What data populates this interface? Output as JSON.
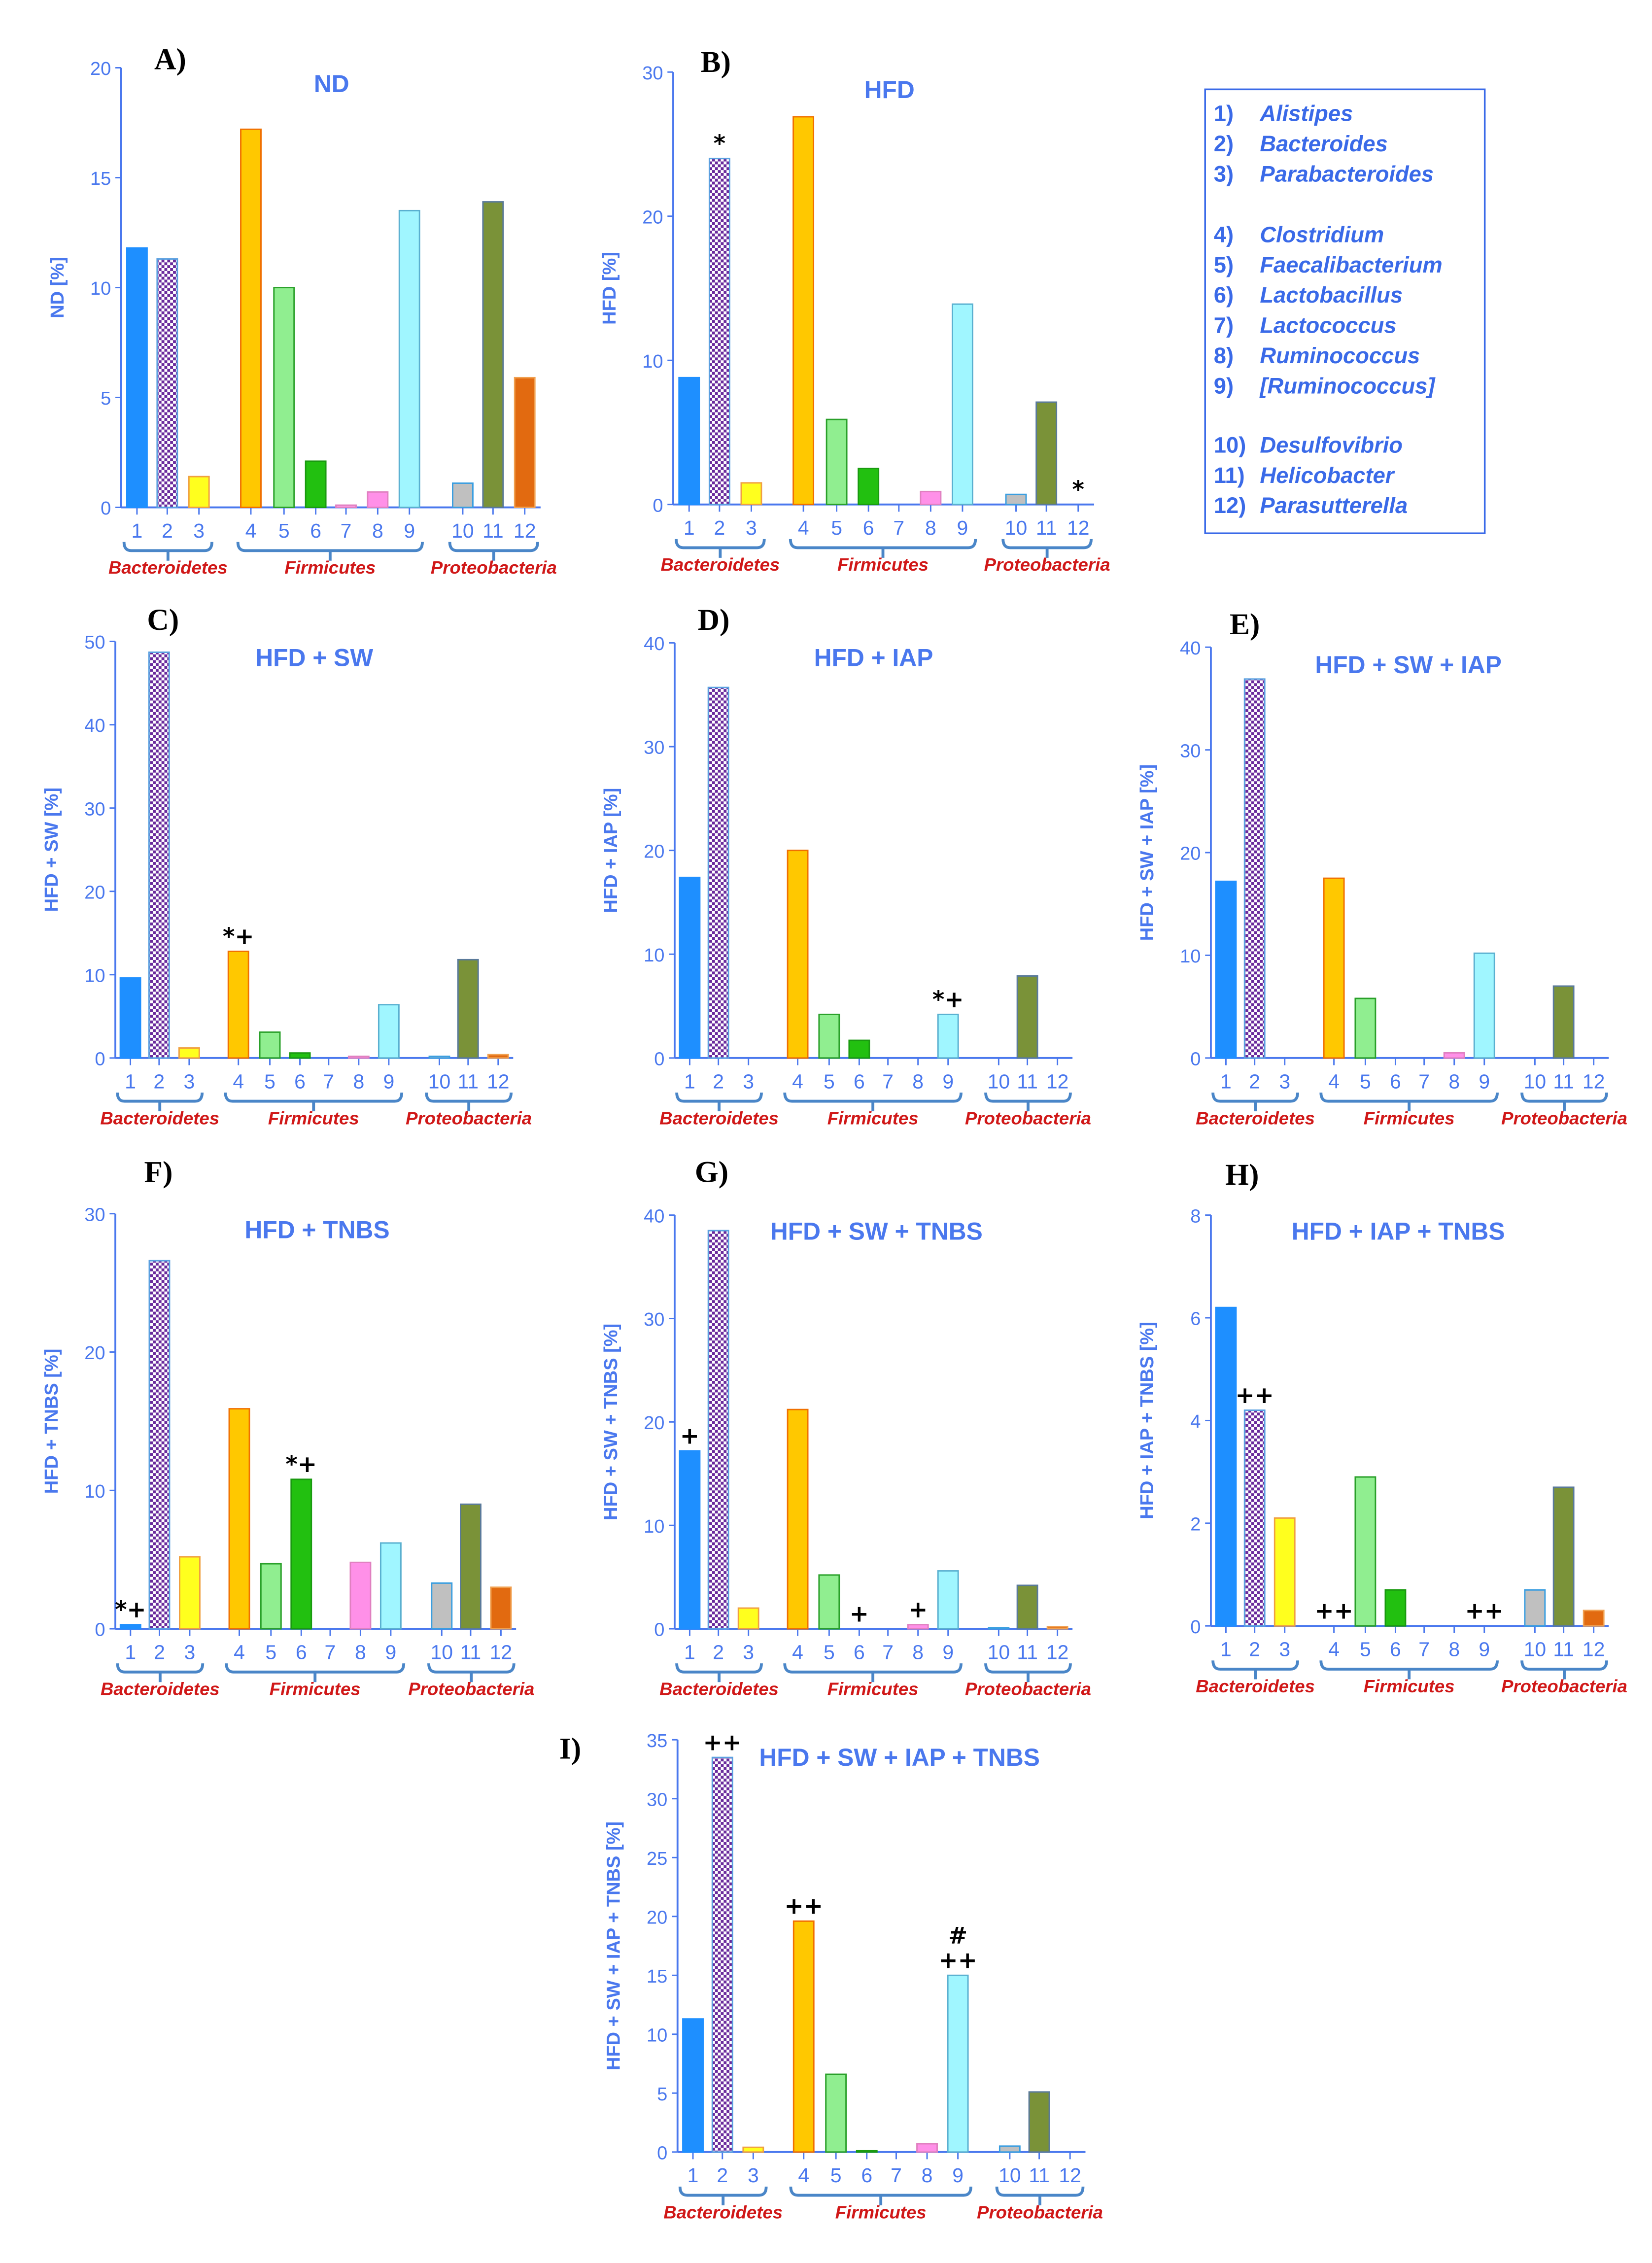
{
  "legend": {
    "items": [
      {
        "num": "1)",
        "name": "Alistipes"
      },
      {
        "num": "2)",
        "name": "Bacteroides"
      },
      {
        "num": "3)",
        "name": "Parabacteroides"
      },
      {
        "num": "4)",
        "name": "Clostridium"
      },
      {
        "num": "5)",
        "name": "Faecalibacterium"
      },
      {
        "num": "6)",
        "name": "Lactobacillus"
      },
      {
        "num": "7)",
        "name": "Lactococcus"
      },
      {
        "num": "8)",
        "name": "Ruminococcus"
      },
      {
        "num": "9)",
        "name": "[Ruminococcus]"
      },
      {
        "num": "10)",
        "name": "Desulfovibrio"
      },
      {
        "num": "11)",
        "name": "Helicobacter"
      },
      {
        "num": "12)",
        "name": "Parasutterella"
      }
    ]
  },
  "colors": {
    "bar_fill": [
      "#1e8fff",
      "#6a2a9c",
      "#ffff1e",
      "#ffc800",
      "#90ee90",
      "#22c010",
      "#ff9ee8",
      "#ff90e8",
      "#a0f6ff",
      "#c0c0c0",
      "#7a9238",
      "#e26a10"
    ],
    "bar_stroke": [
      "#1e8fff",
      "#5aa0e0",
      "#f0a040",
      "#f07000",
      "#2aa02a",
      "#1a9a10",
      "#e080c0",
      "#e080c0",
      "#5ab0d0",
      "#3a9ee0",
      "#5a7a9a",
      "#f0a050"
    ],
    "axis": "#4a78ee",
    "phylum": "#d01818"
  },
  "chart_data": [
    {
      "type": "bar",
      "panel": "A)",
      "title": "ND",
      "ylabel": "ND [%]",
      "ylim": [
        0,
        20
      ],
      "yticks": [
        0,
        5,
        10,
        15,
        20
      ],
      "categories": [
        "1",
        "2",
        "3",
        "4",
        "5",
        "6",
        "7",
        "8",
        "9",
        "10",
        "11",
        "12"
      ],
      "groups": [
        {
          "label": "Bacteroidetes",
          "from": 1,
          "to": 3
        },
        {
          "label": "Firmicutes",
          "from": 4,
          "to": 9
        },
        {
          "label": "Proteobacteria",
          "from": 10,
          "to": 12
        }
      ],
      "values": [
        11.8,
        11.3,
        1.4,
        17.2,
        10.0,
        2.1,
        0.1,
        0.7,
        13.5,
        1.1,
        13.9,
        5.9
      ],
      "annotations": []
    },
    {
      "type": "bar",
      "panel": "B)",
      "title": "HFD",
      "ylabel": "HFD [%]",
      "ylim": [
        0,
        30
      ],
      "yticks": [
        0,
        10,
        20,
        30
      ],
      "categories": [
        "1",
        "2",
        "3",
        "4",
        "5",
        "6",
        "7",
        "8",
        "9",
        "10",
        "11",
        "12"
      ],
      "groups": [
        {
          "label": "Bacteroidetes",
          "from": 1,
          "to": 3
        },
        {
          "label": "Firmicutes",
          "from": 4,
          "to": 9
        },
        {
          "label": "Proteobacteria",
          "from": 10,
          "to": 12
        }
      ],
      "values": [
        8.8,
        24.0,
        1.5,
        26.9,
        5.9,
        2.5,
        0,
        0.9,
        13.9,
        0.7,
        7.1,
        0
      ],
      "annotations": [
        {
          "bar": 2,
          "lines": [
            "*"
          ]
        },
        {
          "bar": 12,
          "lines": [
            "*"
          ]
        }
      ]
    },
    {
      "type": "bar",
      "panel": "C)",
      "title": "HFD + SW",
      "ylabel": "HFD + SW [%]",
      "ylim": [
        0,
        50
      ],
      "yticks": [
        0,
        10,
        20,
        30,
        40,
        50
      ],
      "categories": [
        "1",
        "2",
        "3",
        "4",
        "5",
        "6",
        "7",
        "8",
        "9",
        "10",
        "11",
        "12"
      ],
      "groups": [
        {
          "label": "Bacteroidetes",
          "from": 1,
          "to": 3
        },
        {
          "label": "Firmicutes",
          "from": 4,
          "to": 9
        },
        {
          "label": "Proteobacteria",
          "from": 10,
          "to": 12
        }
      ],
      "values": [
        9.6,
        48.7,
        1.2,
        12.8,
        3.1,
        0.6,
        0,
        0.2,
        6.4,
        0.2,
        11.8,
        0.4
      ],
      "annotations": [
        {
          "bar": 4,
          "lines": [
            "*+"
          ]
        }
      ]
    },
    {
      "type": "bar",
      "panel": "D)",
      "title": "HFD + IAP",
      "ylabel": "HFD + IAP [%]",
      "ylim": [
        0,
        40
      ],
      "yticks": [
        0,
        10,
        20,
        30,
        40
      ],
      "categories": [
        "1",
        "2",
        "3",
        "4",
        "5",
        "6",
        "7",
        "8",
        "9",
        "10",
        "11",
        "12"
      ],
      "groups": [
        {
          "label": "Bacteroidetes",
          "from": 1,
          "to": 3
        },
        {
          "label": "Firmicutes",
          "from": 4,
          "to": 9
        },
        {
          "label": "Proteobacteria",
          "from": 10,
          "to": 12
        }
      ],
      "values": [
        17.4,
        35.7,
        0,
        20.0,
        4.2,
        1.7,
        0,
        0,
        4.2,
        0,
        7.9,
        0
      ],
      "annotations": [
        {
          "bar": 9,
          "lines": [
            "*+"
          ]
        }
      ]
    },
    {
      "type": "bar",
      "panel": "E)",
      "title": "HFD + SW + IAP",
      "ylabel": "HFD + SW + IAP [%]",
      "ylim": [
        0,
        40
      ],
      "yticks": [
        0,
        10,
        20,
        30,
        40
      ],
      "categories": [
        "1",
        "2",
        "3",
        "4",
        "5",
        "6",
        "7",
        "8",
        "9",
        "10",
        "11",
        "12"
      ],
      "groups": [
        {
          "label": "Bacteroidetes",
          "from": 1,
          "to": 3
        },
        {
          "label": "Firmicutes",
          "from": 4,
          "to": 9
        },
        {
          "label": "Proteobacteria",
          "from": 10,
          "to": 12
        }
      ],
      "values": [
        17.2,
        36.9,
        0,
        17.5,
        5.8,
        0,
        0,
        0.5,
        10.2,
        0,
        7.0,
        0
      ],
      "annotations": []
    },
    {
      "type": "bar",
      "panel": "F)",
      "title": "HFD + TNBS",
      "ylabel": "HFD + TNBS [%]",
      "ylim": [
        0,
        30
      ],
      "yticks": [
        0,
        10,
        20,
        30
      ],
      "categories": [
        "1",
        "2",
        "3",
        "4",
        "5",
        "6",
        "7",
        "8",
        "9",
        "10",
        "11",
        "12"
      ],
      "groups": [
        {
          "label": "Bacteroidetes",
          "from": 1,
          "to": 3
        },
        {
          "label": "Firmicutes",
          "from": 4,
          "to": 9
        },
        {
          "label": "Proteobacteria",
          "from": 10,
          "to": 12
        }
      ],
      "values": [
        0.3,
        26.6,
        5.2,
        15.9,
        4.7,
        10.8,
        0,
        4.8,
        6.2,
        3.3,
        9.0,
        3.0
      ],
      "annotations": [
        {
          "bar": 1,
          "lines": [
            "*+"
          ]
        },
        {
          "bar": 6,
          "lines": [
            "*+"
          ]
        }
      ]
    },
    {
      "type": "bar",
      "panel": "G)",
      "title": "HFD + SW + TNBS",
      "ylabel": "HFD + SW + TNBS [%]",
      "ylim": [
        0,
        40
      ],
      "yticks": [
        0,
        10,
        20,
        30,
        40
      ],
      "categories": [
        "1",
        "2",
        "3",
        "4",
        "5",
        "6",
        "7",
        "8",
        "9",
        "10",
        "11",
        "12"
      ],
      "groups": [
        {
          "label": "Bacteroidetes",
          "from": 1,
          "to": 3
        },
        {
          "label": "Firmicutes",
          "from": 4,
          "to": 9
        },
        {
          "label": "Proteobacteria",
          "from": 10,
          "to": 12
        }
      ],
      "values": [
        17.2,
        38.5,
        2.0,
        21.2,
        5.2,
        0,
        0,
        0.4,
        5.6,
        0.1,
        4.2,
        0.2
      ],
      "annotations": [
        {
          "bar": 1,
          "lines": [
            "+"
          ]
        },
        {
          "bar": 6,
          "lines": [
            "+"
          ]
        },
        {
          "bar": 8,
          "lines": [
            "+"
          ]
        }
      ]
    },
    {
      "type": "bar",
      "panel": "H)",
      "title": "HFD + IAP + TNBS",
      "ylabel": "HFD + IAP + TNBS [%]",
      "ylim": [
        0,
        8
      ],
      "yticks": [
        0,
        2,
        4,
        6,
        8
      ],
      "categories": [
        "1",
        "2",
        "3",
        "4",
        "5",
        "6",
        "7",
        "8",
        "9",
        "10",
        "11",
        "12"
      ],
      "groups": [
        {
          "label": "Bacteroidetes",
          "from": 1,
          "to": 3
        },
        {
          "label": "Firmicutes",
          "from": 4,
          "to": 9
        },
        {
          "label": "Proteobacteria",
          "from": 10,
          "to": 12
        }
      ],
      "values": [
        6.2,
        4.2,
        2.1,
        0,
        2.9,
        0.7,
        0,
        0,
        0,
        0.7,
        2.7,
        0.3
      ],
      "annotations": [
        {
          "bar": 2,
          "lines": [
            "++"
          ]
        },
        {
          "bar": 4,
          "lines": [
            "++"
          ]
        },
        {
          "bar": 9,
          "lines": [
            "++"
          ]
        }
      ]
    },
    {
      "type": "bar",
      "panel": "I)",
      "title": "HFD + SW + IAP + TNBS",
      "ylabel": "HFD + SW + IAP + TNBS [%]",
      "ylim": [
        0,
        35
      ],
      "yticks": [
        0,
        5,
        10,
        15,
        20,
        25,
        30,
        35
      ],
      "categories": [
        "1",
        "2",
        "3",
        "4",
        "5",
        "6",
        "7",
        "8",
        "9",
        "10",
        "11",
        "12"
      ],
      "groups": [
        {
          "label": "Bacteroidetes",
          "from": 1,
          "to": 3
        },
        {
          "label": "Firmicutes",
          "from": 4,
          "to": 9
        },
        {
          "label": "Proteobacteria",
          "from": 10,
          "to": 12
        }
      ],
      "values": [
        11.3,
        33.5,
        0.4,
        19.6,
        6.6,
        0.1,
        0,
        0.7,
        15.0,
        0.5,
        5.1,
        0
      ],
      "annotations": [
        {
          "bar": 2,
          "lines": [
            "++"
          ]
        },
        {
          "bar": 4,
          "lines": [
            "++"
          ]
        },
        {
          "bar": 9,
          "lines": [
            "++",
            "#"
          ]
        }
      ]
    }
  ]
}
